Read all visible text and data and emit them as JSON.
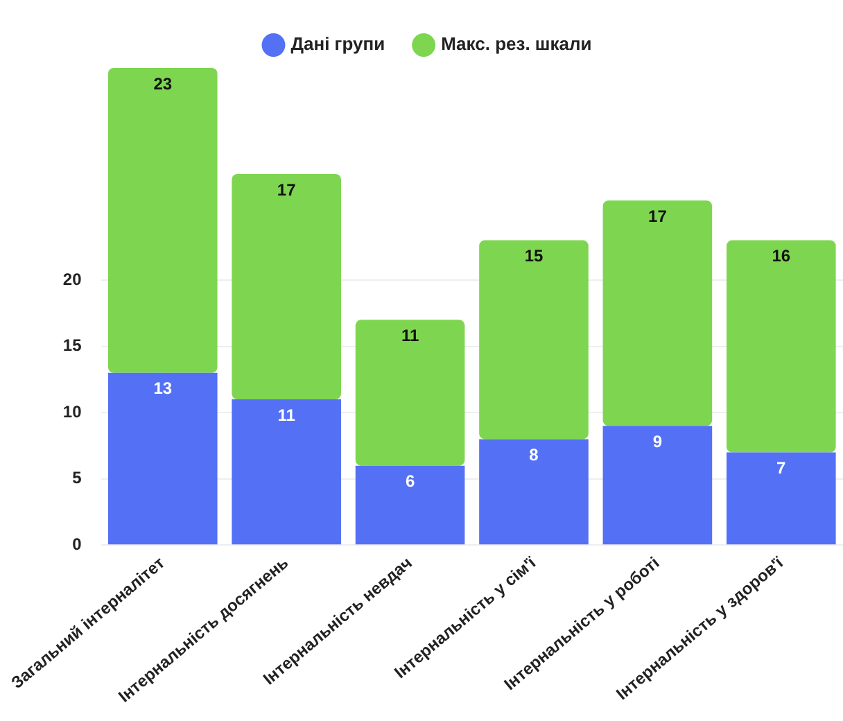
{
  "chart_data": {
    "type": "bar",
    "stacked": true,
    "categories": [
      "Загальний інтерналітет",
      "Інтернальність досягнень",
      "Інтернальність невдач",
      "Інтернальність у сім'ї",
      "Інтернальність у роботі",
      "Інтернальність у здоров'ї"
    ],
    "series": [
      {
        "name": "Дані групи",
        "color": "#5470f5",
        "values": [
          13,
          11,
          6,
          8,
          9,
          7
        ]
      },
      {
        "name": "Макс. рез. шкали",
        "color": "#7ed650",
        "values": [
          23,
          17,
          11,
          15,
          17,
          16
        ]
      }
    ],
    "ylim": [
      0,
      36
    ],
    "yticks": [
      0,
      5,
      10,
      15,
      20
    ],
    "grid": "y",
    "legend": "top",
    "data_labels": true
  }
}
